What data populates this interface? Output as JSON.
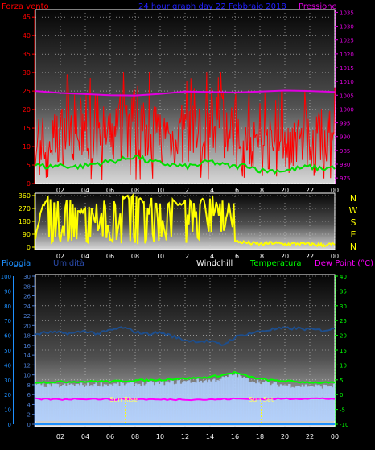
{
  "chart_data": [
    {
      "type": "line",
      "title": "24 hour graph day  22 Febbraio 2018",
      "left_axis_label": "Forza vento",
      "right_axis_label": "Pressione",
      "x_ticks": [
        "02",
        "04",
        "06",
        "08",
        "10",
        "12",
        "14",
        "16",
        "18",
        "20",
        "22",
        "00"
      ],
      "left_ticks": [
        0,
        5,
        10,
        15,
        20,
        25,
        30,
        35,
        40,
        45
      ],
      "right_ticks": [
        975,
        980,
        985,
        990,
        995,
        1000,
        1005,
        1010,
        1015,
        1020,
        1025,
        1030,
        1035
      ],
      "left_range": [
        0,
        47
      ],
      "right_range": [
        973,
        1036
      ],
      "grid": true,
      "colors": {
        "wind": "#ff0000",
        "gust": "#00e000",
        "pressure": "#e000e0"
      },
      "series": [
        {
          "key": "pressure",
          "axis": "right",
          "x": [
            0,
            2,
            4,
            6,
            8,
            10,
            12,
            14,
            16,
            18,
            20,
            22,
            24
          ],
          "values": [
            1006.5,
            1005.8,
            1005.4,
            1005.0,
            1004.9,
            1005.5,
            1006.3,
            1006.2,
            1006.0,
            1006.3,
            1006.7,
            1006.5,
            1006.2
          ]
        },
        {
          "key": "gust",
          "axis": "left",
          "x": [
            0,
            1,
            2,
            3,
            4,
            5,
            6,
            7,
            8,
            9,
            10,
            11,
            12,
            13,
            14,
            15,
            16,
            17,
            18,
            19,
            20,
            21,
            22,
            23,
            24
          ],
          "values": [
            5,
            4.5,
            5,
            4.5,
            4.8,
            5.5,
            6,
            6.5,
            7.5,
            6,
            5.5,
            5,
            4.5,
            5,
            6,
            5,
            4.5,
            5,
            3.5,
            3.5,
            3.5,
            4,
            4.5,
            4,
            4.5
          ]
        },
        {
          "key": "wind",
          "axis": "left",
          "x": [
            0,
            1,
            2,
            3,
            4,
            5,
            6,
            7,
            8,
            9,
            10,
            11,
            12,
            13,
            14,
            15,
            16,
            17,
            18,
            19,
            20,
            21,
            22,
            23,
            24
          ],
          "values": [
            13,
            11,
            13,
            15,
            14,
            15,
            12,
            16,
            17,
            16,
            13,
            12,
            14,
            13,
            17,
            16,
            12,
            10,
            11,
            9,
            10,
            12,
            11,
            13,
            14
          ]
        }
      ]
    },
    {
      "type": "line",
      "right_labels": [
        "N",
        "W",
        "S",
        "E",
        "N"
      ],
      "left_ticks": [
        0,
        90,
        180,
        270,
        360
      ],
      "left_range": [
        0,
        360
      ],
      "x_ticks": [
        "02",
        "04",
        "06",
        "08",
        "10",
        "12",
        "14",
        "16",
        "18",
        "20",
        "22",
        "00"
      ],
      "grid": true,
      "colors": {
        "direction": "#ffff00"
      },
      "series": [
        {
          "key": "direction",
          "x": [
            0,
            0.5,
            1,
            1.5,
            2,
            2.5,
            3,
            3.5,
            4,
            4.5,
            5,
            5.5,
            6,
            6.5,
            7,
            7.5,
            8,
            8.5,
            9,
            9.5,
            10,
            10.5,
            11,
            11.5,
            12,
            12.5,
            13,
            13.5,
            14,
            14.5,
            15,
            15.5,
            16,
            17,
            18,
            19,
            20,
            21,
            22,
            23,
            24
          ],
          "values": [
            60,
            270,
            340,
            300,
            40,
            330,
            300,
            250,
            260,
            280,
            100,
            330,
            40,
            40,
            350,
            350,
            360,
            330,
            280,
            30,
            300,
            40,
            320,
            300,
            320,
            60,
            300,
            340,
            40,
            320,
            60,
            300,
            40,
            30,
            20,
            30,
            20,
            25,
            20,
            15,
            20
          ]
        }
      ]
    },
    {
      "type": "line",
      "labels": {
        "rain": "Pioggia",
        "humidity": "Umidità",
        "windchill": "Windchill",
        "temperature": "Temperatura",
        "dewpoint": "Dew Point (°C)"
      },
      "annotations": {
        "sunrise": "Sun Rise",
        "sunset": "Sun Set"
      },
      "sunrise_x": 7.2,
      "sunset_x": 18.1,
      "x_ticks": [
        "02",
        "04",
        "06",
        "08",
        "10",
        "12",
        "14",
        "16",
        "18",
        "20",
        "22",
        "00"
      ],
      "rain_ticks": [
        0,
        10,
        20,
        30,
        40,
        50,
        60,
        70,
        80,
        90,
        100
      ],
      "humidity_ticks": [
        0,
        2,
        4,
        6,
        8,
        10,
        12,
        14,
        16,
        18,
        20,
        22,
        24,
        26,
        28,
        30
      ],
      "temp_ticks": [
        -10,
        -5,
        0,
        5,
        10,
        15,
        20,
        25,
        30,
        35,
        40
      ],
      "temp_range": [
        -10,
        40
      ],
      "grid": true,
      "colors": {
        "rain": "#1e90ff",
        "humidity": "#1e4e8c",
        "windchill": "#b0d0ff",
        "temperature": "#00ff00",
        "dewpoint": "#ff00ff"
      },
      "series": [
        {
          "key": "humidity",
          "x": [
            0,
            1,
            2,
            3,
            4,
            5,
            6,
            7,
            8,
            9,
            10,
            11,
            12,
            13,
            14,
            15,
            16,
            17,
            18,
            19,
            20,
            21,
            22,
            23,
            24
          ],
          "values": [
            18.2,
            18.6,
            18.5,
            18.4,
            18.9,
            18.3,
            19.0,
            19.6,
            18.7,
            18.3,
            18.6,
            17.8,
            17.0,
            16.8,
            16.8,
            16.0,
            17.6,
            18.3,
            18.8,
            19.2,
            19.4,
            19.4,
            19.2,
            19.0,
            19.3
          ]
        },
        {
          "key": "windchill",
          "x": [
            0,
            1,
            2,
            3,
            4,
            5,
            6,
            7,
            8,
            9,
            10,
            11,
            12,
            13,
            14,
            15,
            16,
            17,
            18,
            19,
            20,
            21,
            22,
            23,
            24
          ],
          "values": [
            3,
            3.2,
            3,
            3.4,
            3.2,
            3.5,
            3.4,
            3.6,
            3.6,
            3.8,
            3.9,
            4.2,
            4.4,
            4.6,
            4.7,
            5.5,
            7.0,
            5.0,
            4.4,
            3.6,
            3.2,
            3.0,
            3.0,
            2.8,
            3.0
          ]
        },
        {
          "key": "temperature",
          "x": [
            0,
            1,
            2,
            3,
            4,
            5,
            6,
            7,
            8,
            9,
            10,
            11,
            12,
            13,
            14,
            15,
            16,
            17,
            18,
            19,
            20,
            21,
            22,
            23,
            24
          ],
          "values": [
            4.2,
            4.2,
            4.3,
            4.4,
            4.4,
            4.5,
            4.4,
            4.6,
            4.8,
            4.9,
            5.0,
            5.3,
            5.5,
            5.6,
            6.0,
            6.6,
            7.5,
            6.2,
            5.3,
            4.8,
            4.6,
            4.3,
            4.2,
            4.0,
            4.0
          ]
        },
        {
          "key": "dewpoint",
          "x": [
            0,
            2,
            4,
            6,
            8,
            10,
            12,
            14,
            16,
            18,
            20,
            22,
            24
          ],
          "values": [
            -1.5,
            -1.6,
            -1.4,
            -1.6,
            -1.5,
            -1.7,
            -1.6,
            -1.7,
            -1.4,
            -1.5,
            -1.4,
            -1.3,
            -1.4
          ]
        },
        {
          "key": "rain",
          "x": [
            0,
            24
          ],
          "values": [
            0,
            0
          ]
        }
      ]
    }
  ]
}
